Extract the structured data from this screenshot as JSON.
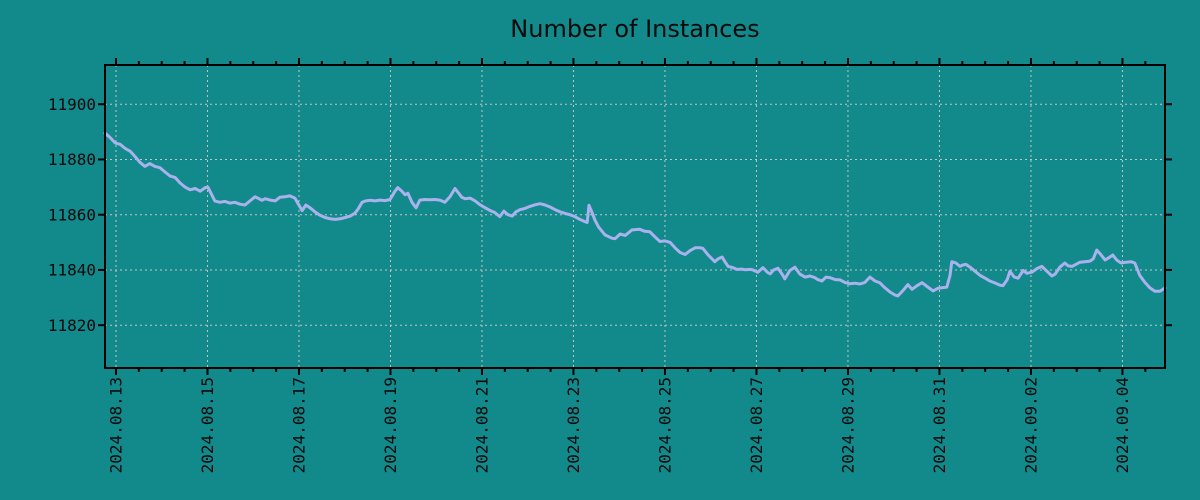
{
  "chart_data": {
    "type": "line",
    "title": "Number of Instances",
    "colors": {
      "background": "#12898b",
      "line": "#aab2ee",
      "grid": "#c4c4c4",
      "axis": "#000000",
      "text": "#0a0a0a"
    },
    "grid": true,
    "legend": "none",
    "x_axis": {
      "tick_labels": [
        "2024.08.13",
        "2024.08.15",
        "2024.08.17",
        "2024.08.19",
        "2024.08.21",
        "2024.08.23",
        "2024.08.25",
        "2024.08.27",
        "2024.08.29",
        "2024.08.31",
        "2024.09.02",
        "2024.09.04"
      ],
      "major_tick_every_days": 2,
      "minor_tick_every_days": 0.5,
      "label_rotation_deg": 90,
      "range_days_from_first_label": [
        -0.24,
        22.93
      ]
    },
    "y_axis": {
      "tick_values": [
        11820,
        11840,
        11860,
        11880,
        11900
      ],
      "ylim": [
        11804.5,
        11914.2
      ]
    },
    "series": [
      {
        "name": "Number of Instances",
        "points": [
          [
            -0.24,
            11889.5
          ],
          [
            -0.13,
            11888
          ],
          [
            -0.02,
            11886
          ],
          [
            0.09,
            11885.5
          ],
          [
            0.2,
            11884
          ],
          [
            0.31,
            11883
          ],
          [
            0.42,
            11881
          ],
          [
            0.52,
            11879
          ],
          [
            0.63,
            11877.5
          ],
          [
            0.74,
            11878.5
          ],
          [
            0.85,
            11877.5
          ],
          [
            0.96,
            11877
          ],
          [
            1.07,
            11875.5
          ],
          [
            1.18,
            11874
          ],
          [
            1.29,
            11873.5
          ],
          [
            1.4,
            11871.5
          ],
          [
            1.51,
            11870
          ],
          [
            1.62,
            11869
          ],
          [
            1.73,
            11869.5
          ],
          [
            1.84,
            11868.5
          ],
          [
            1.95,
            11869.8
          ],
          [
            2.01,
            11870
          ],
          [
            2.1,
            11867
          ],
          [
            2.16,
            11865
          ],
          [
            2.27,
            11864.5
          ],
          [
            2.38,
            11864.8
          ],
          [
            2.49,
            11864.2
          ],
          [
            2.6,
            11864.5
          ],
          [
            2.71,
            11863.8
          ],
          [
            2.82,
            11863.5
          ],
          [
            2.93,
            11865
          ],
          [
            3.04,
            11866.5
          ],
          [
            3.1,
            11866
          ],
          [
            3.19,
            11865.2
          ],
          [
            3.26,
            11865.8
          ],
          [
            3.37,
            11865.3
          ],
          [
            3.48,
            11865
          ],
          [
            3.58,
            11866.3
          ],
          [
            3.69,
            11866.5
          ],
          [
            3.8,
            11866.8
          ],
          [
            3.91,
            11866
          ],
          [
            3.98,
            11864
          ],
          [
            4.07,
            11861.5
          ],
          [
            4.15,
            11863.5
          ],
          [
            4.24,
            11862.5
          ],
          [
            4.35,
            11861
          ],
          [
            4.46,
            11859.8
          ],
          [
            4.57,
            11859
          ],
          [
            4.68,
            11858.5
          ],
          [
            4.79,
            11858.3
          ],
          [
            4.9,
            11858.5
          ],
          [
            5.01,
            11859
          ],
          [
            5.12,
            11859.5
          ],
          [
            5.22,
            11860.5
          ],
          [
            5.29,
            11862
          ],
          [
            5.38,
            11864.5
          ],
          [
            5.46,
            11865
          ],
          [
            5.55,
            11865.2
          ],
          [
            5.66,
            11865
          ],
          [
            5.77,
            11865.3
          ],
          [
            5.88,
            11865.1
          ],
          [
            5.99,
            11865.5
          ],
          [
            6.1,
            11868.5
          ],
          [
            6.16,
            11869.8
          ],
          [
            6.25,
            11868.5
          ],
          [
            6.32,
            11867.2
          ],
          [
            6.38,
            11867.8
          ],
          [
            6.47,
            11864.5
          ],
          [
            6.56,
            11862.5
          ],
          [
            6.64,
            11865.3
          ],
          [
            6.75,
            11865.5
          ],
          [
            6.86,
            11865.4
          ],
          [
            6.97,
            11865.5
          ],
          [
            7.08,
            11865.3
          ],
          [
            7.19,
            11864.5
          ],
          [
            7.3,
            11866.5
          ],
          [
            7.41,
            11869.5
          ],
          [
            7.48,
            11868
          ],
          [
            7.56,
            11866.3
          ],
          [
            7.63,
            11865.8
          ],
          [
            7.74,
            11866
          ],
          [
            7.85,
            11865
          ],
          [
            7.96,
            11863.6
          ],
          [
            8.07,
            11862.5
          ],
          [
            8.18,
            11861.5
          ],
          [
            8.28,
            11860.8
          ],
          [
            8.39,
            11859.3
          ],
          [
            8.48,
            11861.3
          ],
          [
            8.57,
            11860
          ],
          [
            8.66,
            11859.5
          ],
          [
            8.74,
            11861
          ],
          [
            8.83,
            11861.8
          ],
          [
            8.94,
            11862.3
          ],
          [
            9.05,
            11863
          ],
          [
            9.16,
            11863.6
          ],
          [
            9.27,
            11864
          ],
          [
            9.38,
            11863.5
          ],
          [
            9.49,
            11862.8
          ],
          [
            9.6,
            11861.8
          ],
          [
            9.71,
            11861
          ],
          [
            9.81,
            11860.5
          ],
          [
            9.92,
            11860
          ],
          [
            10.03,
            11859.3
          ],
          [
            10.14,
            11858.3
          ],
          [
            10.25,
            11857.5
          ],
          [
            10.3,
            11857.2
          ],
          [
            10.34,
            11863.4
          ],
          [
            10.4,
            11861
          ],
          [
            10.47,
            11858
          ],
          [
            10.55,
            11855.5
          ],
          [
            10.69,
            11852.7
          ],
          [
            10.84,
            11851.5
          ],
          [
            10.91,
            11851.3
          ],
          [
            11.02,
            11853
          ],
          [
            11.13,
            11852.5
          ],
          [
            11.28,
            11854.5
          ],
          [
            11.45,
            11854.7
          ],
          [
            11.56,
            11854
          ],
          [
            11.67,
            11853.8
          ],
          [
            11.78,
            11852
          ],
          [
            11.89,
            11850.3
          ],
          [
            12,
            11850.5
          ],
          [
            12.11,
            11850
          ],
          [
            12.22,
            11848
          ],
          [
            12.33,
            11846.3
          ],
          [
            12.44,
            11845.6
          ],
          [
            12.55,
            11847
          ],
          [
            12.66,
            11848
          ],
          [
            12.77,
            11848
          ],
          [
            12.83,
            11847.8
          ],
          [
            12.94,
            11845.5
          ],
          [
            13.03,
            11844
          ],
          [
            13.09,
            11843
          ],
          [
            13.16,
            11844
          ],
          [
            13.25,
            11844.7
          ],
          [
            13.31,
            11843
          ],
          [
            13.38,
            11841.3
          ],
          [
            13.49,
            11840.8
          ],
          [
            13.57,
            11840.2
          ],
          [
            13.68,
            11840.3
          ],
          [
            13.75,
            11840.1
          ],
          [
            13.86,
            11840.2
          ],
          [
            13.92,
            11840
          ],
          [
            14.03,
            11839.2
          ],
          [
            14.14,
            11840.8
          ],
          [
            14.25,
            11839
          ],
          [
            14.3,
            11838.6
          ],
          [
            14.38,
            11840
          ],
          [
            14.47,
            11840.6
          ],
          [
            14.56,
            11838.5
          ],
          [
            14.62,
            11836.8
          ],
          [
            14.73,
            11839.8
          ],
          [
            14.84,
            11841
          ],
          [
            14.95,
            11838.5
          ],
          [
            15.06,
            11837.4
          ],
          [
            15.17,
            11837.8
          ],
          [
            15.28,
            11837.2
          ],
          [
            15.34,
            11836.5
          ],
          [
            15.43,
            11836
          ],
          [
            15.52,
            11837.4
          ],
          [
            15.61,
            11837.2
          ],
          [
            15.72,
            11836.5
          ],
          [
            15.83,
            11836.4
          ],
          [
            15.93,
            11835.5
          ],
          [
            16.04,
            11835
          ],
          [
            16.15,
            11835.2
          ],
          [
            16.26,
            11834.9
          ],
          [
            16.37,
            11835.5
          ],
          [
            16.48,
            11837.4
          ],
          [
            16.59,
            11836
          ],
          [
            16.7,
            11835.3
          ],
          [
            16.81,
            11833.5
          ],
          [
            16.92,
            11832
          ],
          [
            17.03,
            11830.9
          ],
          [
            17.09,
            11830.6
          ],
          [
            17.2,
            11832.5
          ],
          [
            17.31,
            11834.7
          ],
          [
            17.4,
            11833
          ],
          [
            17.51,
            11834.3
          ],
          [
            17.62,
            11835.4
          ],
          [
            17.73,
            11834
          ],
          [
            17.86,
            11832.4
          ],
          [
            17.97,
            11833.4
          ],
          [
            18.08,
            11833.6
          ],
          [
            18.16,
            11833.8
          ],
          [
            18.23,
            11838
          ],
          [
            18.27,
            11843
          ],
          [
            18.36,
            11842.5
          ],
          [
            18.45,
            11841.3
          ],
          [
            18.51,
            11841.8
          ],
          [
            18.58,
            11842
          ],
          [
            18.67,
            11841
          ],
          [
            18.78,
            11839.5
          ],
          [
            18.89,
            11838
          ],
          [
            19,
            11837
          ],
          [
            19.1,
            11836
          ],
          [
            19.21,
            11835.3
          ],
          [
            19.32,
            11834.5
          ],
          [
            19.39,
            11834.3
          ],
          [
            19.48,
            11836.5
          ],
          [
            19.54,
            11839.5
          ],
          [
            19.63,
            11837.5
          ],
          [
            19.72,
            11837
          ],
          [
            19.83,
            11839.8
          ],
          [
            19.91,
            11838.8
          ],
          [
            20.02,
            11839.2
          ],
          [
            20.13,
            11840.5
          ],
          [
            20.24,
            11841.3
          ],
          [
            20.35,
            11839.5
          ],
          [
            20.46,
            11837.8
          ],
          [
            20.53,
            11838.5
          ],
          [
            20.63,
            11841
          ],
          [
            20.74,
            11842.5
          ],
          [
            20.81,
            11841.5
          ],
          [
            20.9,
            11841.3
          ],
          [
            20.98,
            11842
          ],
          [
            21.07,
            11842.8
          ],
          [
            21.18,
            11843
          ],
          [
            21.29,
            11843.2
          ],
          [
            21.36,
            11844
          ],
          [
            21.44,
            11847.2
          ],
          [
            21.53,
            11845.5
          ],
          [
            21.62,
            11843.6
          ],
          [
            21.71,
            11844.5
          ],
          [
            21.79,
            11845.4
          ],
          [
            21.88,
            11843.5
          ],
          [
            21.97,
            11842.5
          ],
          [
            22.08,
            11842.8
          ],
          [
            22.19,
            11843
          ],
          [
            22.27,
            11842.5
          ],
          [
            22.38,
            11838
          ],
          [
            22.49,
            11835.5
          ],
          [
            22.6,
            11833.5
          ],
          [
            22.71,
            11832.3
          ],
          [
            22.82,
            11832.3
          ],
          [
            22.93,
            11833.5
          ]
        ]
      }
    ]
  }
}
